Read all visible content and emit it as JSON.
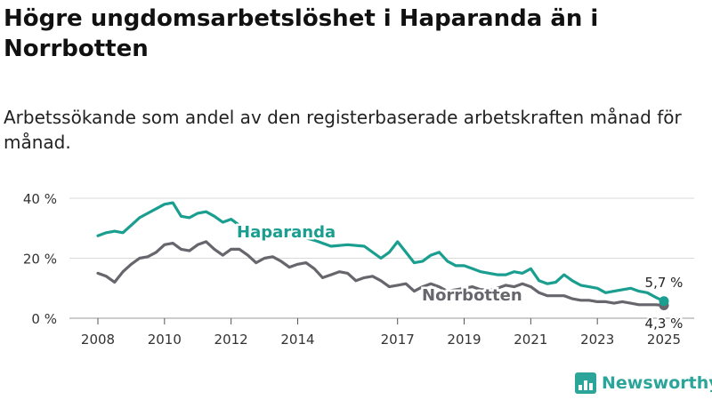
{
  "header": {
    "title": "Högre ungdomsarbetslöshet i Haparanda än i Norrbotten",
    "subtitle": "Arbetssökande som andel av den registerbaserade arbetskraften månad för månad."
  },
  "brand": {
    "name": "Newsworthy",
    "icon": "newsworthy-logo-icon",
    "color": "#2ba59a"
  },
  "chart_data": {
    "type": "line",
    "xlim": [
      2008,
      2025
    ],
    "ylim": [
      0,
      40
    ],
    "y_ticks": [
      0,
      20,
      40
    ],
    "y_tick_labels": [
      "0 %",
      "20 %",
      "40 %"
    ],
    "x_ticks": [
      2008,
      2010,
      2012,
      2014,
      2017,
      2019,
      2021,
      2023,
      2025
    ],
    "x_tick_labels": [
      "2008",
      "2010",
      "2012",
      "2014",
      "2017",
      "2019",
      "2021",
      "2023",
      "2025"
    ],
    "grid": "horizontal",
    "legend": "inline labels",
    "series": [
      {
        "name": "Haparanda",
        "color": "#1a9e8f",
        "end_label": "5,7 %",
        "points": [
          [
            2008.0,
            27.5
          ],
          [
            2008.25,
            28.5
          ],
          [
            2008.5,
            29
          ],
          [
            2008.75,
            28.5
          ],
          [
            2009.0,
            31
          ],
          [
            2009.25,
            33.5
          ],
          [
            2009.5,
            35
          ],
          [
            2009.75,
            36.5
          ],
          [
            2010.0,
            38
          ],
          [
            2010.25,
            38.5
          ],
          [
            2010.5,
            34
          ],
          [
            2010.75,
            33.5
          ],
          [
            2011.0,
            35
          ],
          [
            2011.25,
            35.5
          ],
          [
            2011.5,
            34
          ],
          [
            2011.75,
            32
          ],
          [
            2012.0,
            33
          ],
          [
            2012.25,
            31
          ],
          [
            2012.5,
            30
          ],
          [
            2012.75,
            29
          ],
          [
            2013.0,
            28
          ],
          [
            2013.5,
            28
          ],
          [
            2014.0,
            27.5
          ],
          [
            2014.5,
            26
          ],
          [
            2015.0,
            24
          ],
          [
            2015.5,
            24.5
          ],
          [
            2016.0,
            24
          ],
          [
            2016.5,
            20
          ],
          [
            2016.75,
            22
          ],
          [
            2017.0,
            25.5
          ],
          [
            2017.25,
            22
          ],
          [
            2017.5,
            18.5
          ],
          [
            2017.75,
            19
          ],
          [
            2018.0,
            21
          ],
          [
            2018.25,
            22
          ],
          [
            2018.5,
            19
          ],
          [
            2018.75,
            17.5
          ],
          [
            2019.0,
            17.5
          ],
          [
            2019.25,
            16.5
          ],
          [
            2019.5,
            15.5
          ],
          [
            2019.75,
            15
          ],
          [
            2020.0,
            14.5
          ],
          [
            2020.25,
            14.5
          ],
          [
            2020.5,
            15.5
          ],
          [
            2020.75,
            15
          ],
          [
            2021.0,
            16.5
          ],
          [
            2021.25,
            12.5
          ],
          [
            2021.5,
            11.5
          ],
          [
            2021.75,
            12
          ],
          [
            2022.0,
            14.5
          ],
          [
            2022.25,
            12.5
          ],
          [
            2022.5,
            11
          ],
          [
            2022.75,
            10.5
          ],
          [
            2023.0,
            10
          ],
          [
            2023.25,
            8.5
          ],
          [
            2023.5,
            9
          ],
          [
            2023.75,
            9.5
          ],
          [
            2024.0,
            10
          ],
          [
            2024.25,
            9
          ],
          [
            2024.5,
            8.5
          ],
          [
            2024.75,
            7
          ],
          [
            2025.0,
            5.7
          ]
        ]
      },
      {
        "name": "Norrbotten",
        "color": "#66666c",
        "end_label": "4,3 %",
        "points": [
          [
            2008.0,
            15
          ],
          [
            2008.25,
            14
          ],
          [
            2008.5,
            12
          ],
          [
            2008.75,
            15.5
          ],
          [
            2009.0,
            18
          ],
          [
            2009.25,
            20
          ],
          [
            2009.5,
            20.5
          ],
          [
            2009.75,
            22
          ],
          [
            2010.0,
            24.5
          ],
          [
            2010.25,
            25
          ],
          [
            2010.5,
            23
          ],
          [
            2010.75,
            22.5
          ],
          [
            2011.0,
            24.5
          ],
          [
            2011.25,
            25.5
          ],
          [
            2011.5,
            23
          ],
          [
            2011.75,
            21
          ],
          [
            2012.0,
            23
          ],
          [
            2012.25,
            23
          ],
          [
            2012.5,
            21
          ],
          [
            2012.75,
            18.5
          ],
          [
            2013.0,
            20
          ],
          [
            2013.25,
            20.5
          ],
          [
            2013.5,
            19
          ],
          [
            2013.75,
            17
          ],
          [
            2014.0,
            18
          ],
          [
            2014.25,
            18.5
          ],
          [
            2014.5,
            16.5
          ],
          [
            2014.75,
            13.5
          ],
          [
            2015.0,
            14.5
          ],
          [
            2015.25,
            15.5
          ],
          [
            2015.5,
            15
          ],
          [
            2015.75,
            12.5
          ],
          [
            2016.0,
            13.5
          ],
          [
            2016.25,
            14
          ],
          [
            2016.5,
            12.5
          ],
          [
            2016.75,
            10.5
          ],
          [
            2017.0,
            11
          ],
          [
            2017.25,
            11.5
          ],
          [
            2017.5,
            9
          ],
          [
            2017.75,
            10.5
          ],
          [
            2018.0,
            11.5
          ],
          [
            2018.25,
            10.5
          ],
          [
            2018.5,
            9
          ],
          [
            2018.75,
            9.5
          ],
          [
            2019.0,
            10
          ],
          [
            2019.25,
            10.5
          ],
          [
            2019.5,
            9.5
          ],
          [
            2019.75,
            9.5
          ],
          [
            2020.0,
            10
          ],
          [
            2020.25,
            11
          ],
          [
            2020.5,
            10.5
          ],
          [
            2020.75,
            11.5
          ],
          [
            2021.0,
            10.5
          ],
          [
            2021.25,
            8.5
          ],
          [
            2021.5,
            7.5
          ],
          [
            2021.75,
            7.5
          ],
          [
            2022.0,
            7.5
          ],
          [
            2022.25,
            6.5
          ],
          [
            2022.5,
            6
          ],
          [
            2022.75,
            6
          ],
          [
            2023.0,
            5.5
          ],
          [
            2023.25,
            5.5
          ],
          [
            2023.5,
            5
          ],
          [
            2023.75,
            5.5
          ],
          [
            2024.0,
            5
          ],
          [
            2024.25,
            4.5
          ],
          [
            2024.5,
            4.5
          ],
          [
            2024.75,
            4.5
          ],
          [
            2025.0,
            4.3
          ]
        ]
      }
    ]
  }
}
